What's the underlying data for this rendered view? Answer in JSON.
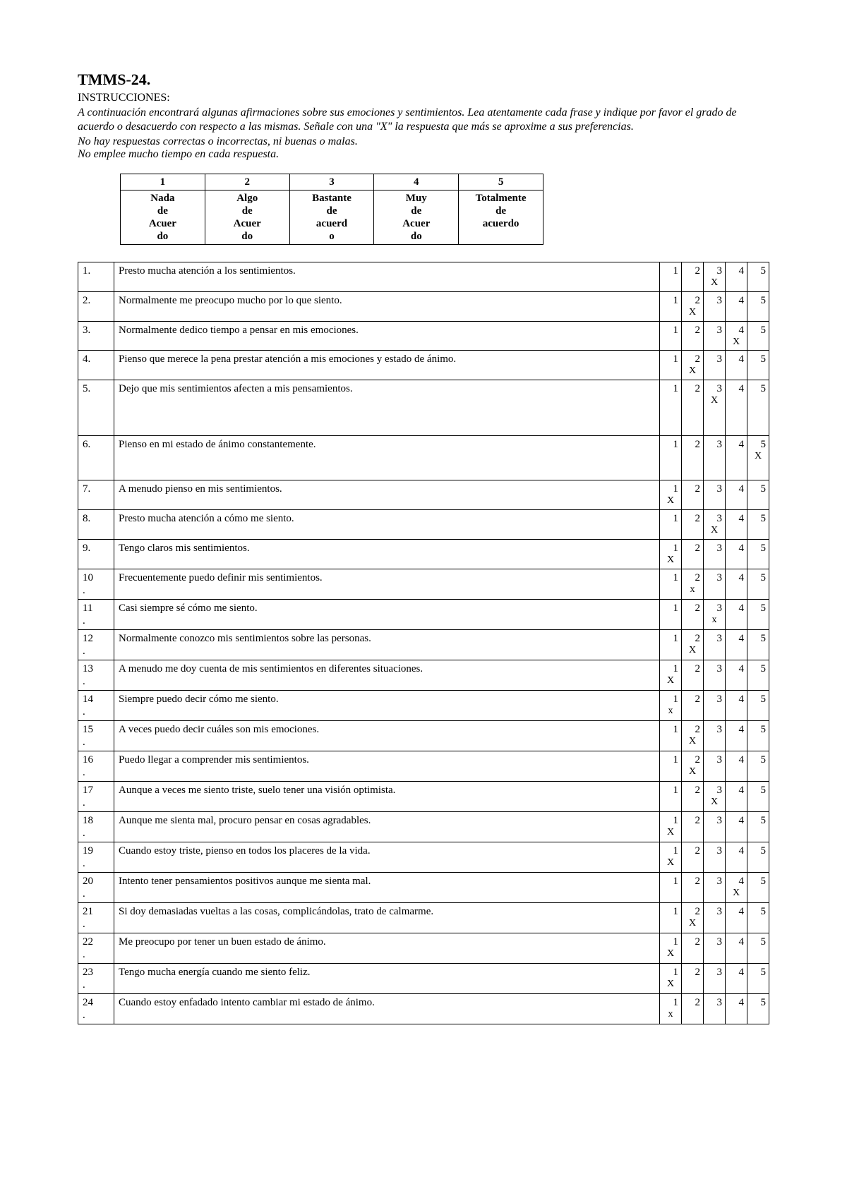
{
  "title": "TMMS-24.",
  "instructions_label": "INSTRUCCIONES:",
  "instructions_body": "A continuación encontrará algunas afirmaciones sobre sus emociones y sentimientos. Lea atentamente cada frase y indique por favor el grado de acuerdo o desacuerdo con respecto a las mismas. Señale con una \"X\" la respuesta que más se aproxime a sus preferencias.",
  "instructions_note1": "No hay respuestas correctas o incorrectas, ni buenas o malas.",
  "instructions_note2": "No emplee mucho tiempo en cada respuesta.",
  "scale": {
    "columns": [
      {
        "num": "1",
        "lines": [
          "Nada",
          "de",
          "Acuer",
          "do"
        ]
      },
      {
        "num": "2",
        "lines": [
          "Algo",
          "de",
          "Acuer",
          "do"
        ]
      },
      {
        "num": "3",
        "lines": [
          "Bastante",
          "de",
          "acuerd",
          "o"
        ]
      },
      {
        "num": "4",
        "lines": [
          "Muy",
          "de",
          "Acuer",
          "do"
        ]
      },
      {
        "num": "5",
        "lines": [
          "Totalmente",
          "de",
          "acuerdo",
          ""
        ]
      }
    ]
  },
  "option_values": [
    "1",
    "2",
    "3",
    "4",
    "5"
  ],
  "items": [
    {
      "n": "1.",
      "dot": "",
      "text": "Presto mucha atención a los sentimientos.",
      "mark": 3,
      "glyph": "X",
      "tall": ""
    },
    {
      "n": "2.",
      "dot": "",
      "text": "Normalmente me preocupo mucho por lo que siento.",
      "mark": 2,
      "glyph": "X",
      "tall": ""
    },
    {
      "n": "3.",
      "dot": "",
      "text": "Normalmente dedico tiempo a pensar en mis emociones.",
      "mark": 4,
      "glyph": "X",
      "tall": ""
    },
    {
      "n": "4.",
      "dot": "",
      "text": "Pienso que merece la pena prestar atención a mis emociones y estado de ánimo.",
      "mark": 2,
      "glyph": "X",
      "tall": ""
    },
    {
      "n": "5.",
      "dot": "",
      "text": "Dejo que mis sentimientos afecten a mis pensamientos.",
      "mark": 3,
      "glyph": "X",
      "tall": "tall"
    },
    {
      "n": "6.",
      "dot": "",
      "text": "Pienso en mi estado de ánimo constantemente.",
      "mark": 5,
      "glyph": "X",
      "tall": "tall2"
    },
    {
      "n": "7.",
      "dot": "",
      "text": "A menudo pienso en mis sentimientos.",
      "mark": 1,
      "glyph": "X",
      "tall": ""
    },
    {
      "n": "8.",
      "dot": "",
      "text": "Presto mucha atención a cómo me siento.",
      "mark": 3,
      "glyph": "X",
      "tall": ""
    },
    {
      "n": "9.",
      "dot": "",
      "text": "Tengo claros mis sentimientos.",
      "mark": 1,
      "glyph": "X",
      "tall": ""
    },
    {
      "n": "10",
      "dot": ".",
      "text": "Frecuentemente puedo definir mis sentimientos.",
      "mark": 2,
      "glyph": "x",
      "tall": ""
    },
    {
      "n": "11",
      "dot": ".",
      "text": "Casi siempre sé cómo me siento.",
      "mark": 3,
      "glyph": "x",
      "tall": ""
    },
    {
      "n": "12",
      "dot": ".",
      "text": "Normalmente conozco mis sentimientos sobre las personas.",
      "mark": 2,
      "glyph": "X",
      "tall": ""
    },
    {
      "n": "13",
      "dot": ".",
      "text": "A menudo me doy cuenta de mis sentimientos en diferentes situaciones.",
      "mark": 1,
      "glyph": "X",
      "tall": ""
    },
    {
      "n": "14",
      "dot": ".",
      "text": "Siempre puedo decir cómo me siento.",
      "mark": 1,
      "glyph": "x",
      "tall": ""
    },
    {
      "n": "15",
      "dot": ".",
      "text": "A veces puedo decir cuáles son mis emociones.",
      "mark": 2,
      "glyph": "X",
      "tall": ""
    },
    {
      "n": "16",
      "dot": ".",
      "text": "Puedo llegar a comprender mis sentimientos.",
      "mark": 2,
      "glyph": "X",
      "tall": ""
    },
    {
      "n": "17",
      "dot": ".",
      "text": "Aunque a veces me siento triste, suelo tener una visión optimista.",
      "mark": 3,
      "glyph": "X",
      "tall": ""
    },
    {
      "n": "18",
      "dot": ".",
      "text": "Aunque me sienta mal, procuro pensar en cosas agradables.",
      "mark": 1,
      "glyph": "X",
      "tall": ""
    },
    {
      "n": "19",
      "dot": ".",
      "text": "Cuando estoy triste, pienso en todos los placeres de la vida.",
      "mark": 1,
      "glyph": "X",
      "tall": ""
    },
    {
      "n": "20",
      "dot": ".",
      "text": "Intento tener pensamientos positivos aunque me sienta mal.",
      "mark": 4,
      "glyph": "X",
      "tall": ""
    },
    {
      "n": "21",
      "dot": ".",
      "text": "Si doy demasiadas vueltas a las cosas, complicándolas, trato de calmarme.",
      "mark": 2,
      "glyph": "X",
      "tall": ""
    },
    {
      "n": "22",
      "dot": ".",
      "text": "Me preocupo por tener un buen estado de ánimo.",
      "mark": 1,
      "glyph": "X",
      "tall": ""
    },
    {
      "n": "23",
      "dot": ".",
      "text": "Tengo mucha energía cuando me siento feliz.",
      "mark": 1,
      "glyph": "X",
      "tall": ""
    },
    {
      "n": "24",
      "dot": ".",
      "text": "Cuando estoy enfadado intento cambiar mi estado de ánimo.",
      "mark": 1,
      "glyph": "x",
      "tall": ""
    }
  ]
}
